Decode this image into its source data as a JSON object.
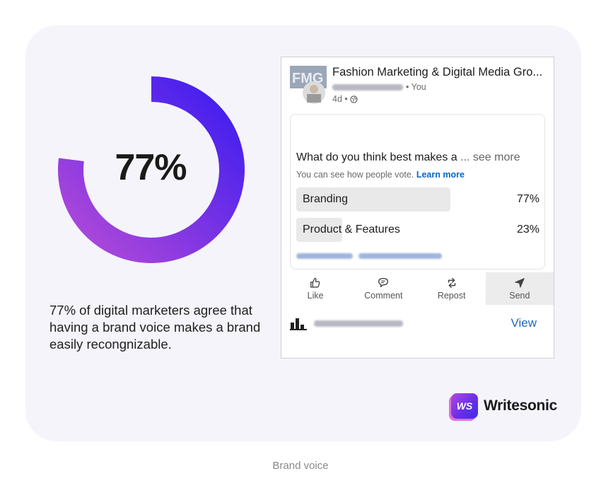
{
  "stat": {
    "value_label": "77%",
    "value_fraction": 0.77,
    "caption": "77% of digital marketers agree that having a brand voice makes a brand easily recongnizable.",
    "gradient_start": "#b34ad8",
    "gradient_end": "#3d1cf0"
  },
  "post": {
    "avatar_text": "FMG",
    "group_name": "Fashion Marketing & Digital Media Gro...",
    "author_suffix": "• You",
    "time": "4d •",
    "poll": {
      "question": "What do you think best makes a",
      "see_more": "... see more",
      "note": "You can see how people vote.",
      "learn_more": "Learn more",
      "options": [
        {
          "label": "Branding",
          "percent_label": "77%",
          "percent": 77
        },
        {
          "label": "Product & Features",
          "percent_label": "23%",
          "percent": 23
        }
      ]
    },
    "actions": [
      {
        "label": "Like",
        "icon": "thumbs-up-icon"
      },
      {
        "label": "Comment",
        "icon": "comment-icon"
      },
      {
        "label": "Repost",
        "icon": "repost-icon"
      },
      {
        "label": "Send",
        "icon": "send-icon"
      }
    ],
    "view_label": "View"
  },
  "brand": {
    "badge": "WS",
    "name": "Writesonic"
  },
  "figure_caption": "Brand voice",
  "colors": {
    "card_bg": "#f5f4fb",
    "link_blue": "#0a66c2",
    "view_blue": "#1f66b5"
  }
}
